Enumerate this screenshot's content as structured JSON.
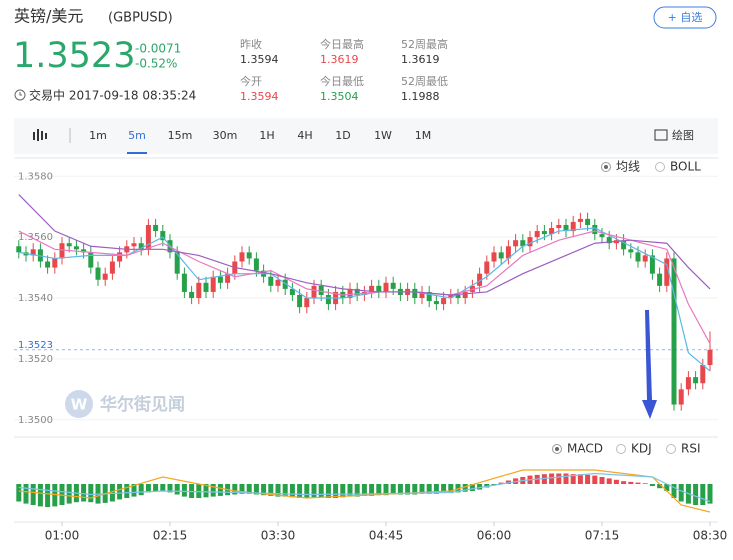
{
  "header": {
    "title": "英镑/美元",
    "symbol": "(GBPUSD)",
    "price": "1.3523",
    "change": "-0.0071",
    "change_pct": "-0.52%",
    "status": "交易中 2017-09-18 08:35:24",
    "button": "+ 自选",
    "stats": [
      {
        "label": "昨收",
        "value": "1.3594"
      },
      {
        "label": "今日最高",
        "value": "1.3619"
      },
      {
        "label": "52周最高",
        "value": "1.3619"
      },
      {
        "label": "今开",
        "value": "1.3594"
      },
      {
        "label": "今日最低",
        "value": "1.3504"
      },
      {
        "label": "52周最低",
        "value": "1.1988"
      }
    ]
  },
  "toolbar": {
    "intervals": [
      "1m",
      "5m",
      "15m",
      "30m",
      "1H",
      "4H",
      "1D",
      "1W",
      "1M"
    ],
    "draw": "绘图"
  },
  "indicators": {
    "main": [
      "均线",
      "BOLL"
    ],
    "sub": [
      "MACD",
      "KDJ",
      "RSI"
    ]
  },
  "chart_data": {
    "type": "candlestick",
    "up_color": "#e8474c",
    "down_color": "#27a04a",
    "ylim": [
      1.3495,
      1.3586
    ],
    "yticks": [
      {
        "value": 1.358,
        "label": "1.3580"
      },
      {
        "value": 1.356,
        "label": "1.3560"
      },
      {
        "value": 1.354,
        "label": "1.3540"
      },
      {
        "value": 1.352,
        "label": "1.3520"
      },
      {
        "value": 1.35,
        "label": "1.3500"
      }
    ],
    "xticks": [
      {
        "value": 6,
        "label": "01:00"
      },
      {
        "value": 21,
        "label": "02:15"
      },
      {
        "value": 36,
        "label": "03:30"
      },
      {
        "value": 51,
        "label": "04:45"
      },
      {
        "value": 66,
        "label": "06:00"
      },
      {
        "value": 81,
        "label": "07:15"
      },
      {
        "value": 96,
        "label": "08:30"
      }
    ],
    "last_price": {
      "value": 1.3523,
      "label": "1.3523",
      "color": "#2f6fd6"
    },
    "open": [
      1.3557,
      1.3555,
      1.3554,
      1.3556,
      1.3552,
      1.355,
      1.3553,
      1.3558,
      1.3557,
      1.3556,
      1.3555,
      1.355,
      1.3546,
      1.3548,
      1.3552,
      1.3555,
      1.3557,
      1.3558,
      1.3556,
      1.3564,
      1.3562,
      1.3559,
      1.3555,
      1.3548,
      1.3542,
      1.354,
      1.3545,
      1.3542,
      1.3547,
      1.3545,
      1.3548,
      1.3552,
      1.3555,
      1.3553,
      1.3549,
      1.3547,
      1.3544,
      1.3546,
      1.3543,
      1.3541,
      1.3537,
      1.354,
      1.3544,
      1.3541,
      1.3538,
      1.3542,
      1.354,
      1.3543,
      1.3541,
      1.3542,
      1.3544,
      1.3542,
      1.3545,
      1.3543,
      1.3541,
      1.3543,
      1.354,
      1.3542,
      1.3539,
      1.3538,
      1.354,
      1.3541,
      1.354,
      1.3542,
      1.3544,
      1.3548,
      1.3552,
      1.3555,
      1.3553,
      1.3557,
      1.3559,
      1.3557,
      1.356,
      1.3562,
      1.3561,
      1.3563,
      1.3564,
      1.3562,
      1.3565,
      1.3566,
      1.3564,
      1.3561,
      1.356,
      1.3558,
      1.3559,
      1.3556,
      1.3555,
      1.3552,
      1.3554,
      1.3548,
      1.3544,
      1.3553,
      1.3505,
      1.351,
      1.3514,
      1.3512,
      1.3518
    ],
    "high": [
      1.3559,
      1.3557,
      1.3558,
      1.3558,
      1.3554,
      1.3555,
      1.356,
      1.356,
      1.3559,
      1.3558,
      1.3557,
      1.3552,
      1.355,
      1.3554,
      1.3557,
      1.3559,
      1.356,
      1.356,
      1.3566,
      1.3566,
      1.3564,
      1.3561,
      1.3557,
      1.355,
      1.3544,
      1.3547,
      1.3547,
      1.3549,
      1.3549,
      1.355,
      1.3554,
      1.3557,
      1.3557,
      1.3555,
      1.3551,
      1.3549,
      1.3548,
      1.3548,
      1.3545,
      1.3543,
      1.3542,
      1.3546,
      1.3546,
      1.3543,
      1.3544,
      1.3544,
      1.3545,
      1.3545,
      1.3544,
      1.3546,
      1.3546,
      1.3547,
      1.3547,
      1.3545,
      1.3545,
      1.3545,
      1.3544,
      1.3544,
      1.3541,
      1.3542,
      1.3543,
      1.3543,
      1.3544,
      1.3546,
      1.355,
      1.3554,
      1.3557,
      1.3557,
      1.3559,
      1.3561,
      1.3561,
      1.3562,
      1.3564,
      1.3564,
      1.3565,
      1.3566,
      1.3566,
      1.3567,
      1.3568,
      1.3568,
      1.3566,
      1.3563,
      1.3562,
      1.3561,
      1.3561,
      1.3558,
      1.3557,
      1.3556,
      1.3556,
      1.355,
      1.3555,
      1.3555,
      1.3512,
      1.3516,
      1.3516,
      1.352,
      1.3529
    ],
    "low": [
      1.3553,
      1.3552,
      1.3552,
      1.355,
      1.3548,
      1.3548,
      1.3551,
      1.3555,
      1.3554,
      1.3553,
      1.3548,
      1.3544,
      1.3544,
      1.3546,
      1.355,
      1.3553,
      1.3555,
      1.3554,
      1.3554,
      1.356,
      1.3557,
      1.3553,
      1.3546,
      1.354,
      1.3538,
      1.3538,
      1.354,
      1.354,
      1.3543,
      1.3543,
      1.3546,
      1.355,
      1.3551,
      1.3547,
      1.3545,
      1.3542,
      1.3542,
      1.3541,
      1.3539,
      1.3535,
      1.3535,
      1.3538,
      1.3539,
      1.3536,
      1.3536,
      1.3538,
      1.3538,
      1.3539,
      1.3539,
      1.354,
      1.354,
      1.354,
      1.3541,
      1.3539,
      1.3539,
      1.3538,
      1.3538,
      1.3537,
      1.3536,
      1.3536,
      1.3538,
      1.3538,
      1.3538,
      1.354,
      1.3542,
      1.3546,
      1.355,
      1.3551,
      1.3551,
      1.3555,
      1.3555,
      1.3555,
      1.3558,
      1.3559,
      1.3559,
      1.3561,
      1.356,
      1.356,
      1.3563,
      1.3562,
      1.3559,
      1.3558,
      1.3556,
      1.3556,
      1.3554,
      1.3553,
      1.355,
      1.355,
      1.3546,
      1.3542,
      1.3542,
      1.3503,
      1.3503,
      1.3508,
      1.351,
      1.351,
      1.3516
    ],
    "close": [
      1.3555,
      1.3554,
      1.3556,
      1.3552,
      1.355,
      1.3553,
      1.3558,
      1.3557,
      1.3556,
      1.3555,
      1.355,
      1.3546,
      1.3548,
      1.3552,
      1.3555,
      1.3557,
      1.3558,
      1.3556,
      1.3564,
      1.3562,
      1.3559,
      1.3555,
      1.3548,
      1.3542,
      1.354,
      1.3545,
      1.3542,
      1.3547,
      1.3545,
      1.3548,
      1.3552,
      1.3555,
      1.3553,
      1.3549,
      1.3547,
      1.3544,
      1.3546,
      1.3543,
      1.3541,
      1.3537,
      1.354,
      1.3544,
      1.3541,
      1.3538,
      1.3542,
      1.354,
      1.3543,
      1.3541,
      1.3542,
      1.3544,
      1.3542,
      1.3545,
      1.3543,
      1.3541,
      1.3543,
      1.354,
      1.3542,
      1.3539,
      1.3538,
      1.354,
      1.3541,
      1.354,
      1.3542,
      1.3544,
      1.3548,
      1.3552,
      1.3555,
      1.3553,
      1.3557,
      1.3559,
      1.3557,
      1.356,
      1.3562,
      1.3561,
      1.3563,
      1.3564,
      1.3562,
      1.3565,
      1.3566,
      1.3564,
      1.3561,
      1.356,
      1.3558,
      1.3559,
      1.3556,
      1.3555,
      1.3552,
      1.3554,
      1.3548,
      1.3544,
      1.3553,
      1.3505,
      1.351,
      1.3514,
      1.3512,
      1.3518,
      1.3523
    ],
    "ma_lines": [
      {
        "color": "#5bb8e8",
        "x": [
          0,
          5,
          10,
          15,
          20,
          25,
          30,
          35,
          40,
          45,
          50,
          55,
          60,
          65,
          70,
          75,
          80,
          85,
          90,
          93,
          96
        ],
        "values": [
          1.3555,
          1.3553,
          1.3554,
          1.3554,
          1.356,
          1.3546,
          1.3548,
          1.3548,
          1.354,
          1.354,
          1.3542,
          1.3542,
          1.354,
          1.3547,
          1.3557,
          1.3562,
          1.3563,
          1.3557,
          1.3551,
          1.3522,
          1.3516
        ]
      },
      {
        "color": "#e879c2",
        "x": [
          0,
          5,
          10,
          15,
          20,
          25,
          30,
          35,
          40,
          45,
          50,
          55,
          60,
          65,
          70,
          75,
          80,
          85,
          90,
          93,
          96
        ],
        "values": [
          1.3562,
          1.3556,
          1.3555,
          1.3554,
          1.3558,
          1.3552,
          1.3547,
          1.3549,
          1.3543,
          1.3541,
          1.3542,
          1.3542,
          1.3541,
          1.3544,
          1.3554,
          1.3559,
          1.3562,
          1.3559,
          1.3556,
          1.3538,
          1.3525
        ]
      },
      {
        "color": "#9b5fc0",
        "x": [
          0,
          5,
          10,
          15,
          20,
          25,
          30,
          35,
          40,
          45,
          50,
          55,
          60,
          65,
          70,
          75,
          80,
          85,
          90,
          93,
          96
        ],
        "values": [
          1.3574,
          1.3562,
          1.3557,
          1.3556,
          1.3556,
          1.3554,
          1.355,
          1.3548,
          1.3545,
          1.3543,
          1.3542,
          1.3542,
          1.3541,
          1.3542,
          1.3548,
          1.3553,
          1.3558,
          1.3559,
          1.3558,
          1.355,
          1.3543
        ]
      }
    ],
    "macd": {
      "histogram": [
        -2.5,
        -2.8,
        -3,
        -3.2,
        -3.3,
        -3.2,
        -3,
        -2.8,
        -2.6,
        -2.5,
        -2.6,
        -2.8,
        -2.7,
        -2.5,
        -2.2,
        -2,
        -1.8,
        -1.6,
        -1.2,
        -1,
        -1,
        -1.2,
        -1.5,
        -1.8,
        -2,
        -2,
        -1.9,
        -1.8,
        -1.7,
        -1.6,
        -1.5,
        -1.4,
        -1.4,
        -1.5,
        -1.6,
        -1.7,
        -1.8,
        -1.8,
        -1.9,
        -2,
        -2,
        -1.9,
        -1.9,
        -2,
        -2,
        -1.9,
        -1.8,
        -1.8,
        -1.7,
        -1.7,
        -1.6,
        -1.6,
        -1.5,
        -1.5,
        -1.5,
        -1.5,
        -1.4,
        -1.4,
        -1.4,
        -1.3,
        -1.3,
        -1.2,
        -1.1,
        -1,
        -0.8,
        -0.5,
        -0.2,
        0.2,
        0.5,
        0.8,
        1,
        1.2,
        1.3,
        1.4,
        1.5,
        1.5,
        1.5,
        1.4,
        1.4,
        1.3,
        1.2,
        1,
        0.8,
        0.6,
        0.4,
        0.3,
        0.2,
        0.1,
        -0.3,
        -0.6,
        -1,
        -2,
        -2.5,
        -2.8,
        -3,
        -3,
        -2.8
      ],
      "lines": [
        {
          "color": "#f5a623",
          "x": [
            0,
            10,
            20,
            30,
            40,
            50,
            60,
            70,
            80,
            88,
            92,
            96
          ],
          "values": [
            -1,
            -2,
            1,
            -1,
            -2,
            -1.5,
            -1,
            2,
            2,
            1,
            -3,
            -4
          ]
        },
        {
          "color": "#7cc4ea",
          "x": [
            0,
            10,
            20,
            30,
            40,
            50,
            60,
            70,
            80,
            88,
            92,
            96
          ],
          "values": [
            -0.5,
            -1.5,
            -1,
            -1.2,
            -1.5,
            -1.4,
            -1.2,
            0.5,
            1.5,
            1,
            -1,
            -2.5
          ]
        }
      ]
    }
  }
}
